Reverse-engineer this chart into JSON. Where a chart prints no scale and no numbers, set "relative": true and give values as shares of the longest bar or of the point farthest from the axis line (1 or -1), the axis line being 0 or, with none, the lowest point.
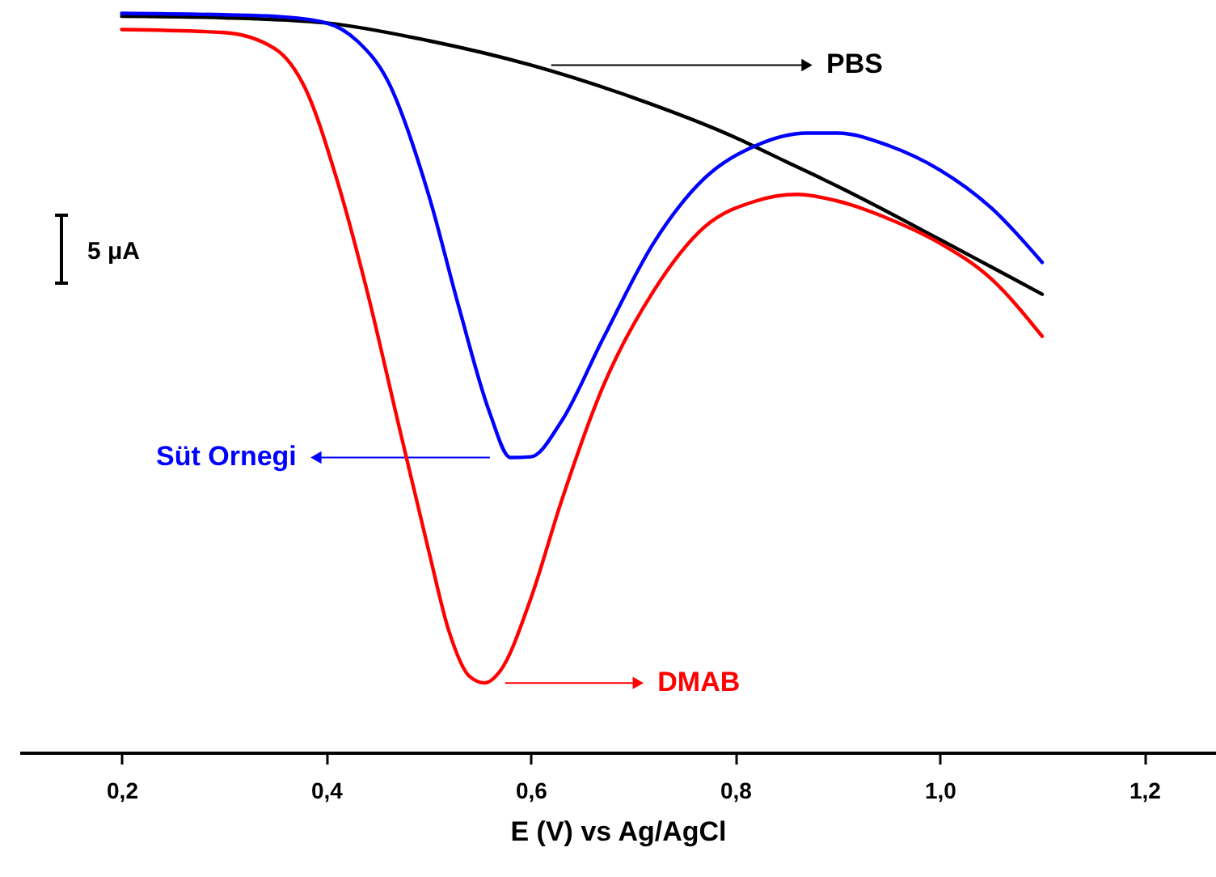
{
  "chart_data": {
    "type": "line",
    "xlabel": "E (V) vs Ag/AgCl",
    "relative": true,
    "xlim": [
      0.1,
      1.27
    ],
    "xticks": [
      {
        "value": 0.2,
        "label": "0,2"
      },
      {
        "value": 0.4,
        "label": "0,4"
      },
      {
        "value": 0.6,
        "label": "0,6"
      },
      {
        "value": 0.8,
        "label": "0,8"
      },
      {
        "value": 1.0,
        "label": "1,0"
      },
      {
        "value": 1.2,
        "label": "1,2"
      }
    ],
    "annotations": [
      "5 μA"
    ],
    "legend": "top right",
    "series": [
      {
        "name": "PBS",
        "color": "#000000",
        "x": [
          0.2,
          0.3,
          0.4,
          0.5,
          0.6,
          0.7,
          0.8,
          0.85,
          0.9,
          1.0,
          1.05,
          1.1
        ],
        "values": [
          0.996,
          0.994,
          0.987,
          0.963,
          0.93,
          0.886,
          0.832,
          0.799,
          0.766,
          0.694,
          0.657,
          0.62
        ]
      },
      {
        "name": "Süt Ornegi",
        "color": "#0000ff",
        "x": [
          0.2,
          0.3,
          0.35,
          0.4,
          0.43,
          0.46,
          0.5,
          0.53,
          0.56,
          0.58,
          0.6,
          0.63,
          0.67,
          0.72,
          0.77,
          0.82,
          0.87,
          0.9,
          0.95,
          1.0,
          1.05,
          1.1
        ],
        "values": [
          1,
          0.998,
          0.996,
          0.987,
          0.963,
          0.909,
          0.755,
          0.601,
          0.459,
          0.399,
          0.4,
          0.448,
          0.558,
          0.689,
          0.777,
          0.821,
          0.838,
          0.838,
          0.821,
          0.788,
          0.737,
          0.663
        ]
      },
      {
        "name": "DMAB",
        "color": "#ff0000",
        "x": [
          0.2,
          0.3,
          0.35,
          0.38,
          0.41,
          0.44,
          0.47,
          0.5,
          0.52,
          0.54,
          0.555,
          0.57,
          0.6,
          0.63,
          0.67,
          0.72,
          0.77,
          0.82,
          0.86,
          0.9,
          0.95,
          1.0,
          1.05,
          1.1
        ],
        "values": [
          0.978,
          0.974,
          0.952,
          0.897,
          0.777,
          0.624,
          0.448,
          0.274,
          0.164,
          0.103,
          0.094,
          0.11,
          0.208,
          0.34,
          0.493,
          0.624,
          0.711,
          0.746,
          0.755,
          0.746,
          0.722,
          0.689,
          0.641,
          0.563
        ]
      }
    ]
  }
}
